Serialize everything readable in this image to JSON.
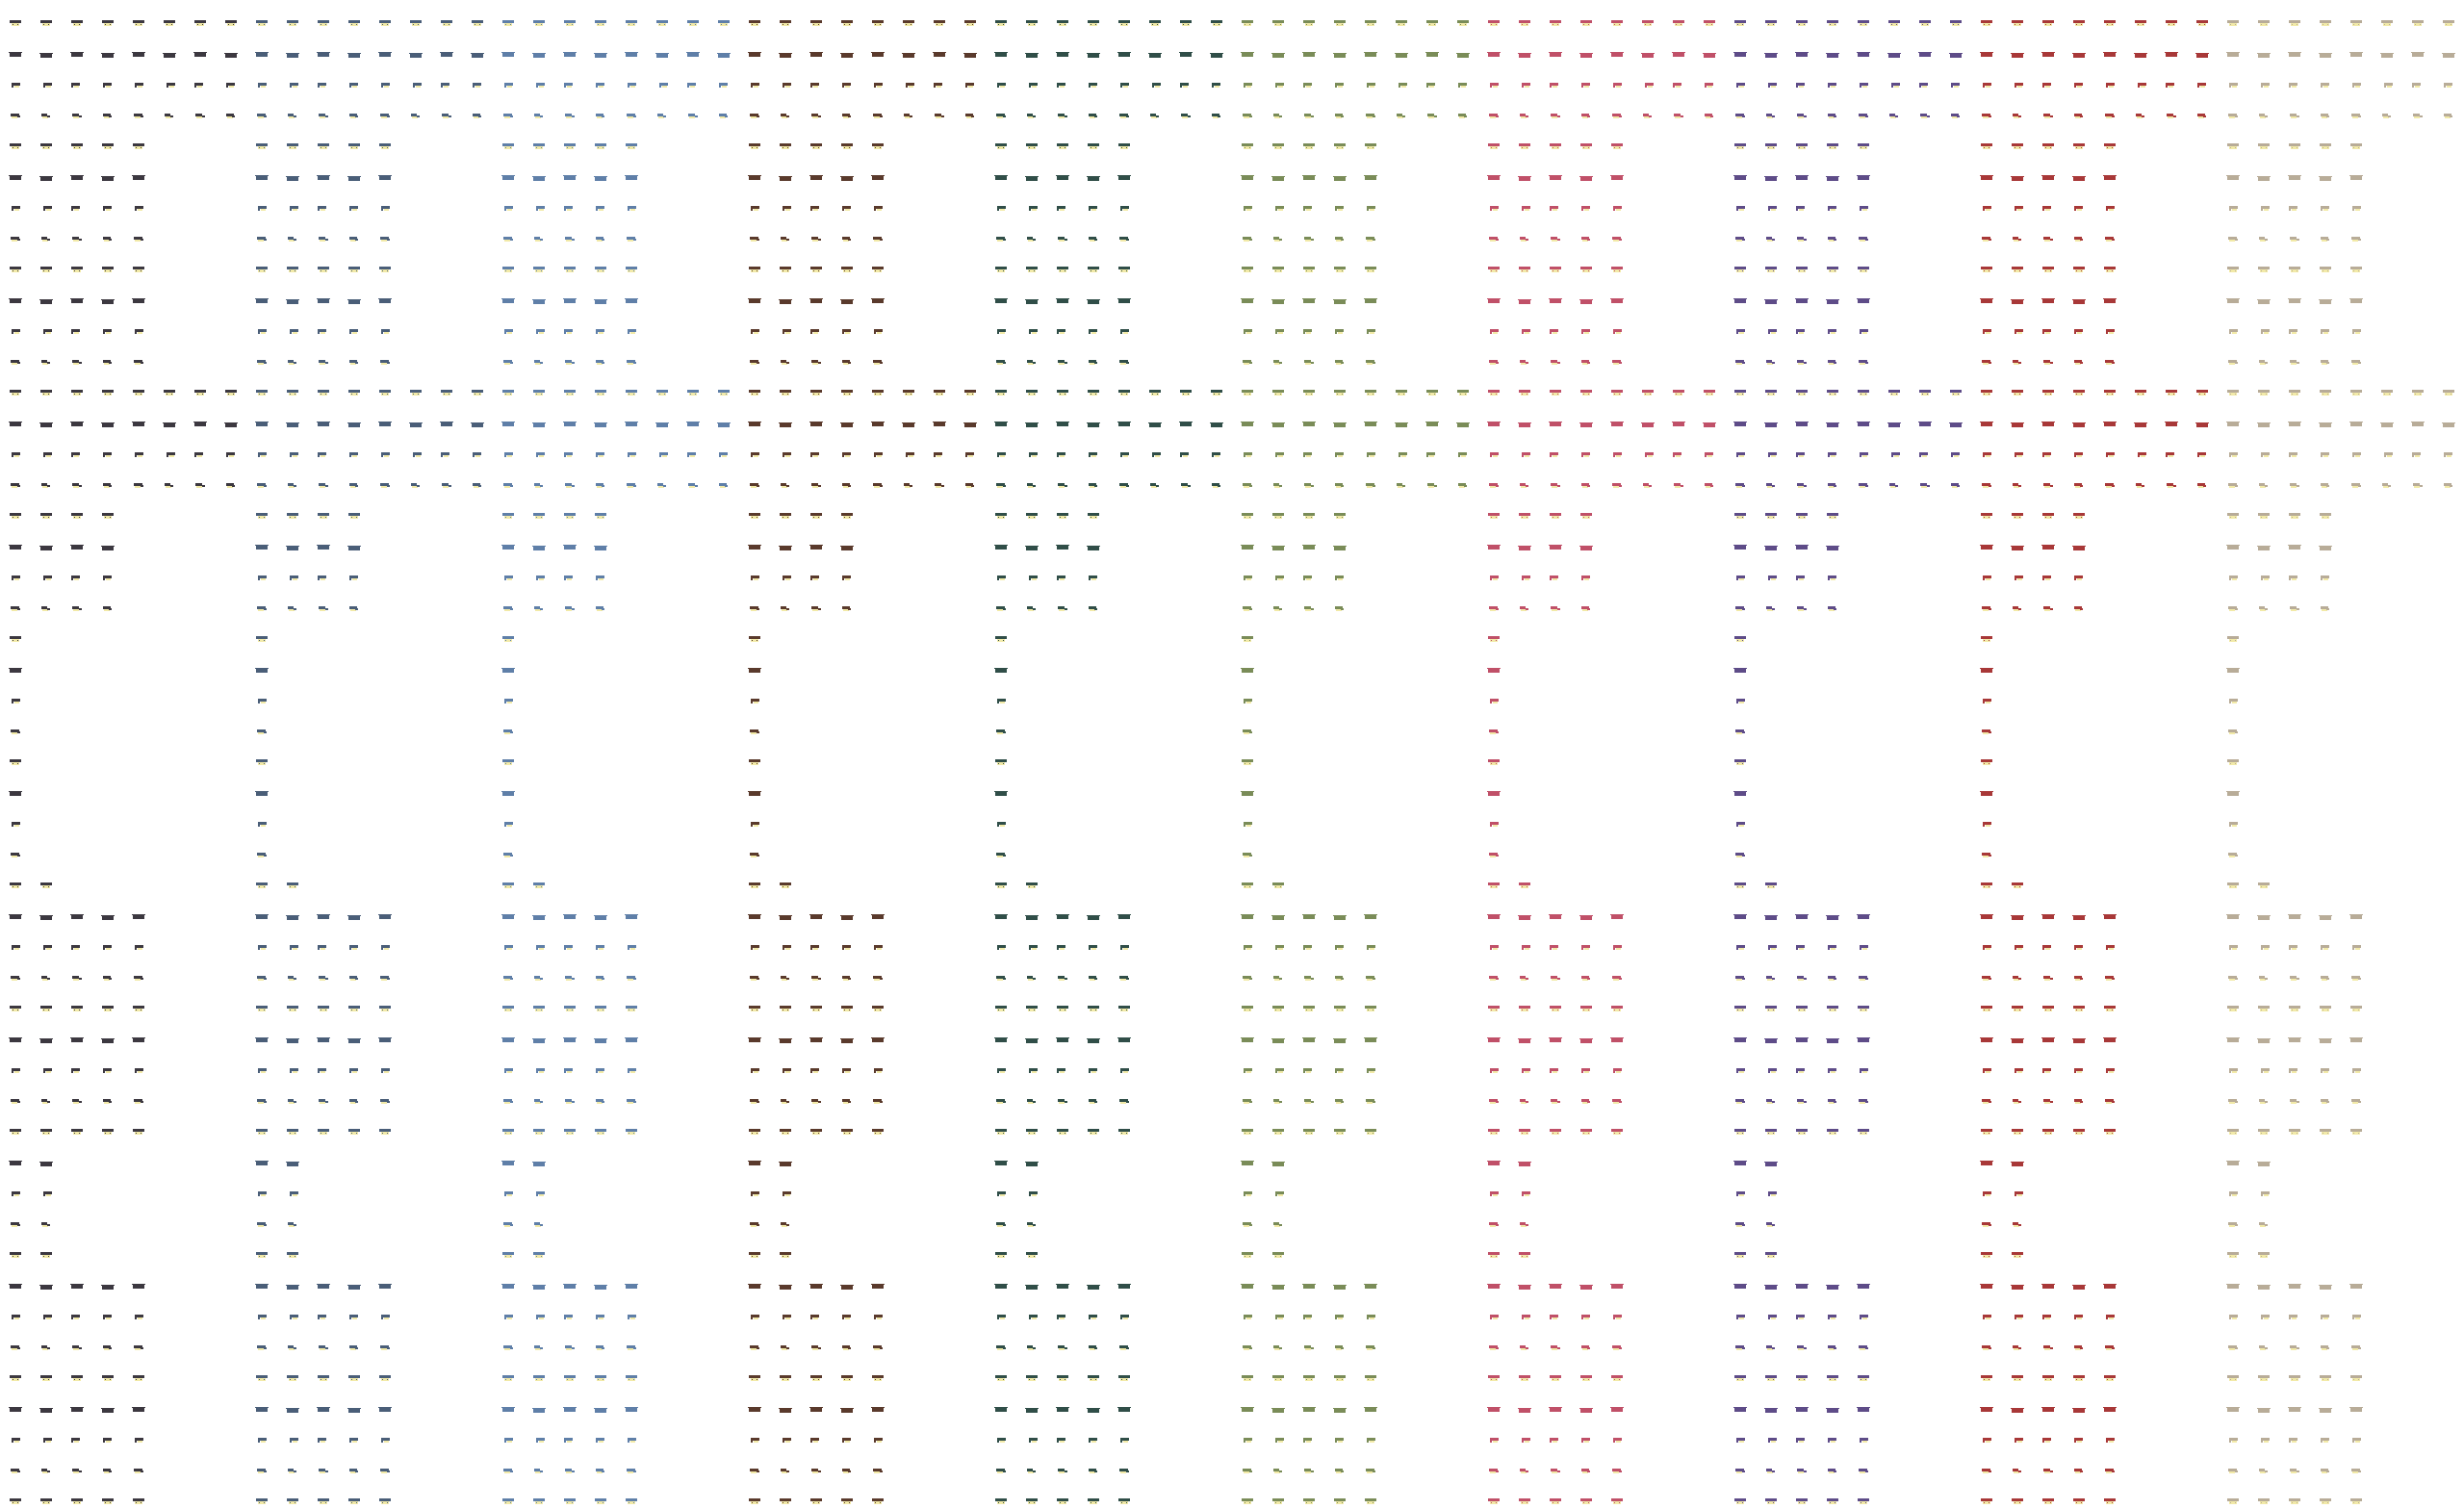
{
  "sheet": {
    "type": "pixel-art sprite sheet",
    "variant_count": 10,
    "palette": [
      {
        "name": "charcoal",
        "color": "#3c3840"
      },
      {
        "name": "slate",
        "color": "#4a5e78"
      },
      {
        "name": "steel-blue",
        "color": "#5f7fa8"
      },
      {
        "name": "brown",
        "color": "#5a3a2c"
      },
      {
        "name": "dark-teal",
        "color": "#304e48"
      },
      {
        "name": "olive",
        "color": "#7a8c58"
      },
      {
        "name": "rose",
        "color": "#c05068"
      },
      {
        "name": "purple",
        "color": "#5e4c88"
      },
      {
        "name": "red",
        "color": "#a83838"
      },
      {
        "name": "khaki",
        "color": "#b8ac98"
      }
    ],
    "accent_color": "#f2eaa8",
    "background": "#ffffff"
  }
}
